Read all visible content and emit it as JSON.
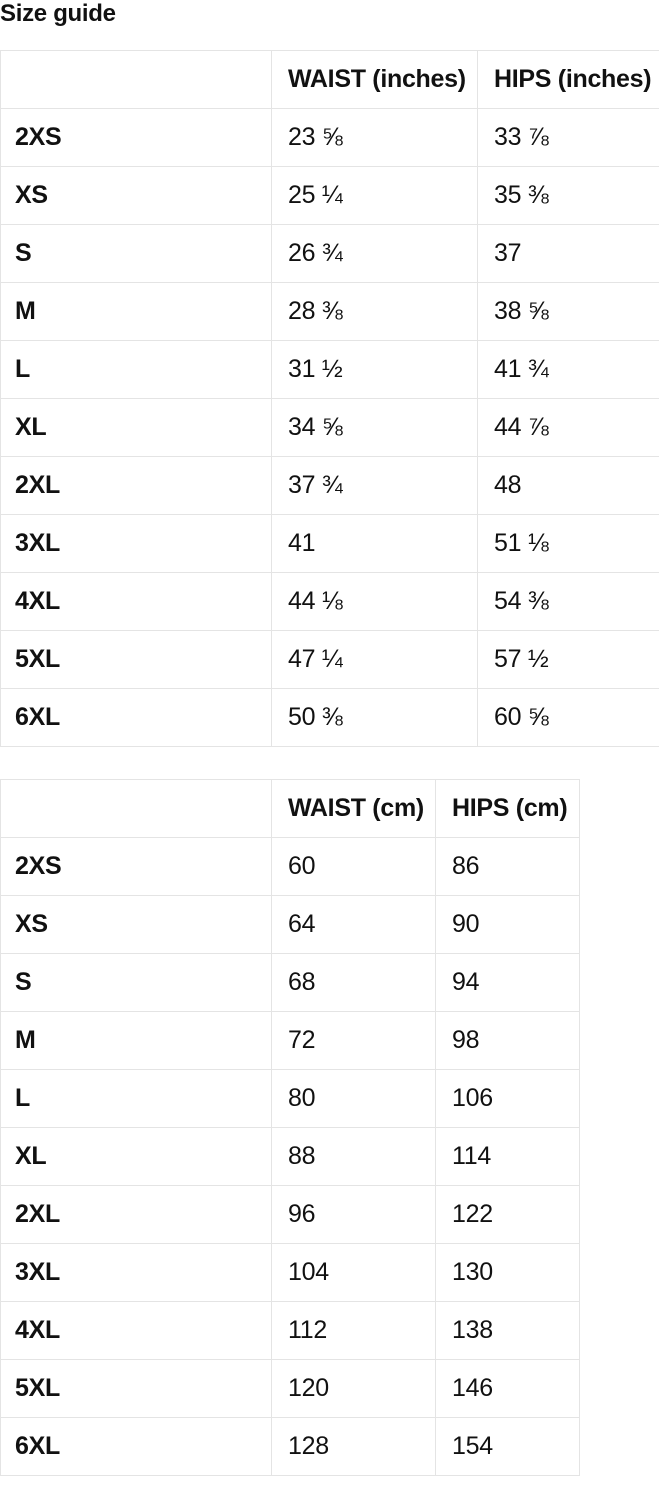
{
  "title": "Size guide",
  "tables": [
    {
      "id": "inches",
      "columns": [
        "",
        "WAIST (inches)",
        "HIPS (inches)"
      ],
      "rows": [
        [
          "2XS",
          "23 ⅝",
          "33 ⅞"
        ],
        [
          "XS",
          "25 ¼",
          "35 ⅜"
        ],
        [
          "S",
          "26 ¾",
          "37"
        ],
        [
          "M",
          "28 ⅜",
          "38 ⅝"
        ],
        [
          "L",
          "31 ½",
          "41 ¾"
        ],
        [
          "XL",
          "34 ⅝",
          "44 ⅞"
        ],
        [
          "2XL",
          "37 ¾",
          "48"
        ],
        [
          "3XL",
          "41",
          "51 ⅛"
        ],
        [
          "4XL",
          "44 ⅛",
          "54 ⅜"
        ],
        [
          "5XL",
          "47 ¼",
          "57 ½"
        ],
        [
          "6XL",
          "50 ⅜",
          "60 ⅝"
        ]
      ]
    },
    {
      "id": "cm",
      "columns": [
        "",
        "WAIST (cm)",
        "HIPS (cm)"
      ],
      "rows": [
        [
          "2XS",
          "60",
          "86"
        ],
        [
          "XS",
          "64",
          "90"
        ],
        [
          "S",
          "68",
          "94"
        ],
        [
          "M",
          "72",
          "98"
        ],
        [
          "L",
          "80",
          "106"
        ],
        [
          "XL",
          "88",
          "114"
        ],
        [
          "2XL",
          "96",
          "122"
        ],
        [
          "3XL",
          "104",
          "130"
        ],
        [
          "4XL",
          "112",
          "138"
        ],
        [
          "5XL",
          "120",
          "146"
        ],
        [
          "6XL",
          "128",
          "154"
        ]
      ]
    }
  ]
}
